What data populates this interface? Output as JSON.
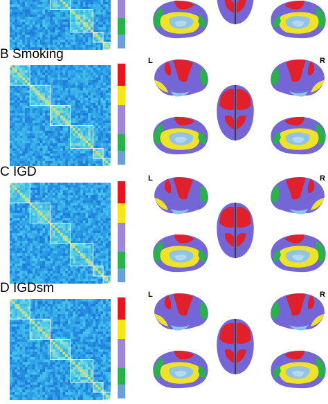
{
  "panels": [
    {
      "id": "A",
      "label": "",
      "title": "",
      "top": -92
    },
    {
      "id": "B",
      "label": "B",
      "title": "Smoking",
      "top": 76
    },
    {
      "id": "C",
      "label": "C",
      "title": "IGD",
      "top": 246
    },
    {
      "id": "D",
      "label": "D",
      "title": "IGDsm",
      "top": 414
    }
  ],
  "hemisphere_labels": {
    "left": "L",
    "right": "R"
  },
  "network_colors": [
    "#e8141f",
    "#f5e616",
    "#9b86d8",
    "#27b24a",
    "#6b9fd6"
  ],
  "brain_colors": {
    "red": "#e0202a",
    "blue": "#7466d6",
    "yellow": "#f0e228",
    "green": "#2bb14a",
    "light": "#8fc4e8",
    "gray": "#3a3a3a"
  }
}
